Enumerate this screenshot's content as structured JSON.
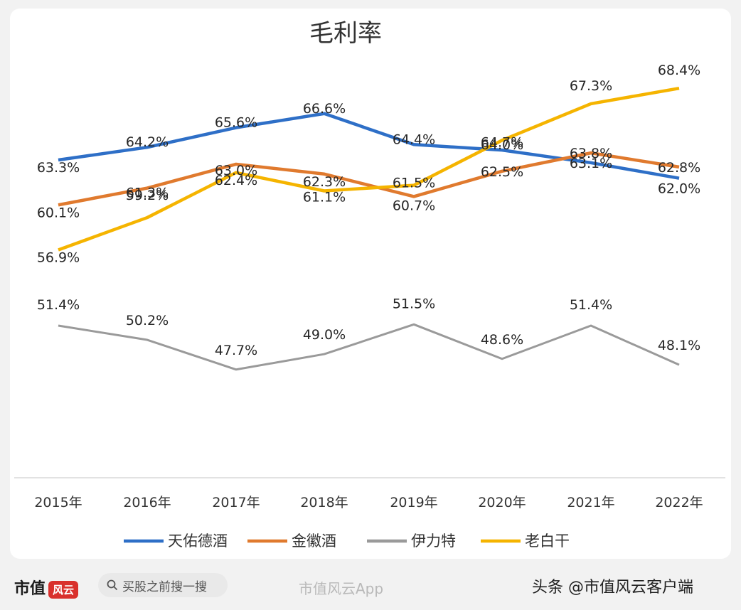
{
  "chart_data": {
    "type": "line",
    "title": "毛利率",
    "categories": [
      "2015年",
      "2016年",
      "2017年",
      "2018年",
      "2019年",
      "2020年",
      "2021年",
      "2022年"
    ],
    "series": [
      {
        "name": "天佑德酒",
        "color": "#2e6fc7",
        "values": [
          63.3,
          64.2,
          65.6,
          66.6,
          64.4,
          64.0,
          63.1,
          62.0
        ],
        "labels": [
          "63.3%",
          "64.2%",
          "65.6%",
          "66.6%",
          "64.4%",
          "64.0%",
          "63.1%",
          "62.0%"
        ]
      },
      {
        "name": "金徽酒",
        "color": "#e07a2e",
        "values": [
          60.1,
          61.3,
          63.0,
          62.3,
          60.7,
          62.5,
          63.8,
          62.8
        ],
        "labels": [
          "60.1%",
          "61.3%",
          "63.0%",
          "62.3%",
          "60.7%",
          "62.5%",
          "63.8%",
          "62.8%"
        ]
      },
      {
        "name": "伊力特",
        "color": "#9a9a9a",
        "values": [
          51.4,
          50.2,
          47.7,
          49.0,
          51.5,
          48.6,
          51.4,
          48.1
        ],
        "labels": [
          "51.4%",
          "50.2%",
          "47.7%",
          "49.0%",
          "51.5%",
          "48.6%",
          "51.4%",
          "48.1%"
        ]
      },
      {
        "name": "老白干",
        "color": "#f5b400",
        "values": [
          56.9,
          59.2,
          62.4,
          61.1,
          61.5,
          64.7,
          67.3,
          68.4
        ],
        "labels": [
          "56.9%",
          "59.2%",
          "62.4%",
          "61.1%",
          "61.5%",
          "64.7%",
          "67.3%",
          "68.4%"
        ]
      }
    ],
    "legend_position": "bottom",
    "grid": false
  },
  "footer": {
    "brand": "市值",
    "brand_badge": "风云",
    "search_text": "买股之前搜一搜",
    "watermark_app": "市值风云App",
    "platform": "头条 @市值风云客户端"
  }
}
